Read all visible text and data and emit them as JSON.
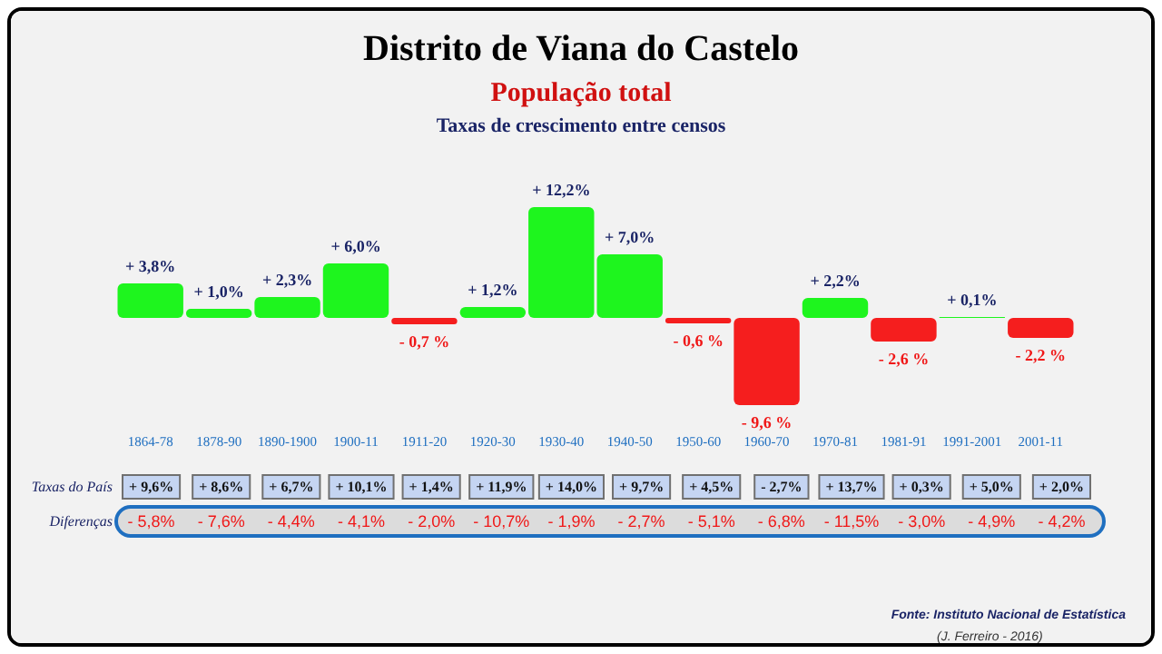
{
  "chart_data": {
    "type": "bar",
    "title": "Distrito de Viana do Castelo",
    "subtitle": "População total",
    "ylabel": "Taxas de crescimento entre censos",
    "categories": [
      "1864-78",
      "1878-90",
      "1890-1900",
      "1900-11",
      "1911-20",
      "1920-30",
      "1930-40",
      "1940-50",
      "1950-60",
      "1960-70",
      "1970-81",
      "1981-91",
      "1991-2001",
      "2001-11"
    ],
    "values": [
      3.8,
      1.0,
      2.3,
      6.0,
      -0.7,
      1.2,
      12.2,
      7.0,
      -0.6,
      -9.6,
      2.2,
      -2.6,
      0.1,
      -2.2
    ],
    "value_labels": [
      "+ 3,8%",
      "+ 1,0%",
      "+ 2,3%",
      "+ 6,0%",
      "- 0,7 %",
      "+ 1,2%",
      "+ 12,2%",
      "+ 7,0%",
      "- 0,6 %",
      "- 9,6 %",
      "+ 2,2%",
      "- 2,6 %",
      "+ 0,1%",
      "- 2,2 %"
    ],
    "colors": [
      "#1ef51e",
      "#1ef51e",
      "#1ef51e",
      "#1ef51e",
      "#f51e1e",
      "#1ef51e",
      "#1ef51e",
      "#1ef51e",
      "#f51e1e",
      "#f51e1e",
      "#1ef51e",
      "#f51e1e",
      "#1ef51e",
      "#f51e1e"
    ],
    "annotations": [
      "Taxas do País",
      "+ 9,6%",
      "+ 8,6%",
      "+ 6,7%",
      "+ 10,1%",
      "+ 1,4%",
      "+ 11,9%",
      "+ 14,0%",
      "+ 9,7%",
      "+ 4,5%",
      "- 2,7%",
      "+ 13,7%",
      "+ 0,3%",
      "+ 5,0%",
      "+ 2,0%",
      "Diferenças",
      "- 5,8%",
      "- 7,6%",
      "- 4,4%",
      "- 4,1%",
      "- 2,0%",
      "- 10,7%",
      "- 1,9%",
      "- 2,7%",
      "- 5,1%",
      "- 6,8%",
      "- 11,5%",
      "- 3,0%",
      "- 4,9%",
      "- 4,2%",
      "Fonte: Instituto Nacional de Estatística",
      "(J. Ferreiro - 2016)"
    ],
    "grid": false
  }
}
